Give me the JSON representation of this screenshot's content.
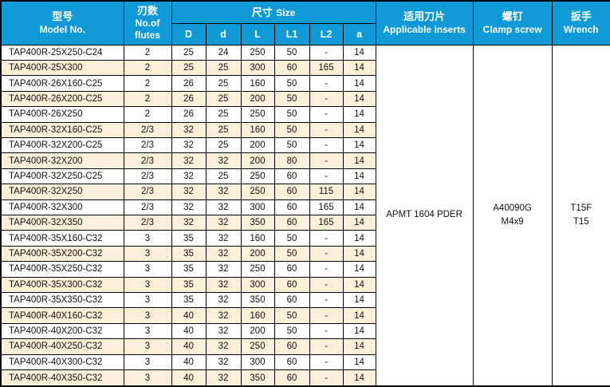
{
  "colors": {
    "header_bg": "#0f9ad7",
    "header_text": "#ffffff",
    "row_alt_bg": "#fcf1d8",
    "row_bg": "#ffffff",
    "grid_border": "#000000",
    "body_text": "#111111"
  },
  "table": {
    "header": {
      "model": {
        "zh": "型号",
        "en": "Model No."
      },
      "flutes": {
        "zh": "刃数",
        "en": "No.of flutes"
      },
      "size": {
        "zh": "尺寸",
        "en": "Size"
      },
      "size_cols": [
        "D",
        "d",
        "L",
        "L1",
        "L2",
        "a"
      ],
      "inserts": {
        "zh": "适用刀片",
        "en": "Applicable inserts"
      },
      "screw": {
        "zh": "螺钉",
        "en": "Clamp screw"
      },
      "wrench": {
        "zh": "扳手",
        "en": "Wrench"
      }
    },
    "rows": [
      {
        "model": "TAP400R-25X250-C24",
        "flutes": "2",
        "D": "25",
        "d": "24",
        "L": "250",
        "L1": "50",
        "L2": "-",
        "a": "14"
      },
      {
        "model": "TAP400R-25X300",
        "flutes": "2",
        "D": "25",
        "d": "25",
        "L": "300",
        "L1": "60",
        "L2": "165",
        "a": "14"
      },
      {
        "model": "TAP400R-26X160-C25",
        "flutes": "2",
        "D": "26",
        "d": "25",
        "L": "160",
        "L1": "50",
        "L2": "-",
        "a": "14"
      },
      {
        "model": "TAP400R-26X200-C25",
        "flutes": "2",
        "D": "26",
        "d": "25",
        "L": "200",
        "L1": "50",
        "L2": "-",
        "a": "14"
      },
      {
        "model": "TAP400R-26X250",
        "flutes": "2",
        "D": "26",
        "d": "25",
        "L": "250",
        "L1": "50",
        "L2": "-",
        "a": "14"
      },
      {
        "model": "TAP400R-32X160-C25",
        "flutes": "2/3",
        "D": "32",
        "d": "25",
        "L": "160",
        "L1": "50",
        "L2": "-",
        "a": "14"
      },
      {
        "model": "TAP400R-32X200-C25",
        "flutes": "2/3",
        "D": "32",
        "d": "25",
        "L": "200",
        "L1": "50",
        "L2": "-",
        "a": "14"
      },
      {
        "model": "TAP400R-32X200",
        "flutes": "2/3",
        "D": "32",
        "d": "32",
        "L": "200",
        "L1": "80",
        "L2": "-",
        "a": "14"
      },
      {
        "model": "TAP400R-32X250-C25",
        "flutes": "2/3",
        "D": "32",
        "d": "25",
        "L": "250",
        "L1": "60",
        "L2": "-",
        "a": "14"
      },
      {
        "model": "TAP400R-32X250",
        "flutes": "2/3",
        "D": "32",
        "d": "32",
        "L": "250",
        "L1": "60",
        "L2": "115",
        "a": "14"
      },
      {
        "model": "TAP400R-32X300",
        "flutes": "2/3",
        "D": "32",
        "d": "32",
        "L": "300",
        "L1": "60",
        "L2": "165",
        "a": "14"
      },
      {
        "model": "TAP400R-32X350",
        "flutes": "2/3",
        "D": "32",
        "d": "32",
        "L": "350",
        "L1": "60",
        "L2": "165",
        "a": "14"
      },
      {
        "model": "TAP400R-35X160-C32",
        "flutes": "3",
        "D": "35",
        "d": "32",
        "L": "160",
        "L1": "50",
        "L2": "-",
        "a": "14"
      },
      {
        "model": "TAP400R-35X200-C32",
        "flutes": "3",
        "D": "35",
        "d": "32",
        "L": "200",
        "L1": "50",
        "L2": "-",
        "a": "14"
      },
      {
        "model": "TAP400R-35X250-C32",
        "flutes": "3",
        "D": "35",
        "d": "32",
        "L": "250",
        "L1": "60",
        "L2": "-",
        "a": "14"
      },
      {
        "model": "TAP400R-35X300-C32",
        "flutes": "3",
        "D": "35",
        "d": "32",
        "L": "300",
        "L1": "60",
        "L2": "-",
        "a": "14"
      },
      {
        "model": "TAP400R-35X350-C32",
        "flutes": "3",
        "D": "35",
        "d": "32",
        "L": "350",
        "L1": "60",
        "L2": "-",
        "a": "14"
      },
      {
        "model": "TAP400R-40X160-C32",
        "flutes": "3",
        "D": "40",
        "d": "32",
        "L": "160",
        "L1": "50",
        "L2": "-",
        "a": "14"
      },
      {
        "model": "TAP400R-40X200-C32",
        "flutes": "3",
        "D": "40",
        "d": "32",
        "L": "200",
        "L1": "50",
        "L2": "-",
        "a": "14"
      },
      {
        "model": "TAP400R-40X250-C32",
        "flutes": "3",
        "D": "40",
        "d": "32",
        "L": "250",
        "L1": "60",
        "L2": "-",
        "a": "14"
      },
      {
        "model": "TAP400R-40X300-C32",
        "flutes": "3",
        "D": "40",
        "d": "32",
        "L": "300",
        "L1": "60",
        "L2": "-",
        "a": "14"
      },
      {
        "model": "TAP400R-40X350-C32",
        "flutes": "3",
        "D": "40",
        "d": "32",
        "L": "350",
        "L1": "60",
        "L2": "-",
        "a": "14"
      }
    ],
    "merged": {
      "inserts": "APMT 1604 PDER",
      "screw": "A40090G\nM4x9",
      "wrench": "T15F\nT15"
    }
  }
}
